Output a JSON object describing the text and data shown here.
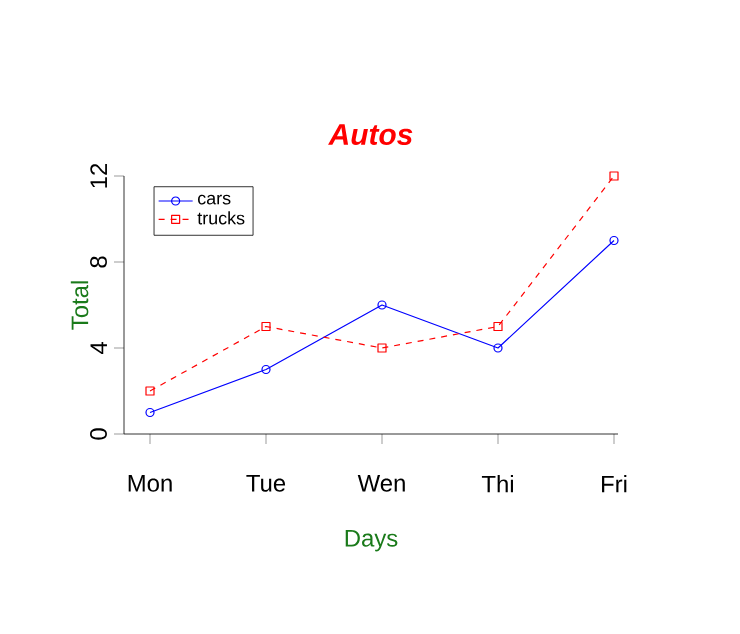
{
  "chart_data": {
    "type": "line",
    "title": "Autos",
    "xlabel": "Days",
    "ylabel": "Total",
    "categories": [
      "Mon",
      "Tue",
      "Wen",
      "Thi",
      "Fri"
    ],
    "series": [
      {
        "name": "cars",
        "color": "#0000ff",
        "values": [
          1,
          3,
          6,
          4,
          9
        ],
        "marker": "circle",
        "line_style": "solid"
      },
      {
        "name": "trucks",
        "color": "#ff0000",
        "values": [
          2,
          5,
          4,
          5,
          12
        ],
        "marker": "square",
        "line_style": "dashed"
      }
    ],
    "ylim": [
      0,
      12
    ],
    "yticks": [
      0,
      4,
      8,
      12
    ],
    "legend": "top left",
    "grid": false
  }
}
